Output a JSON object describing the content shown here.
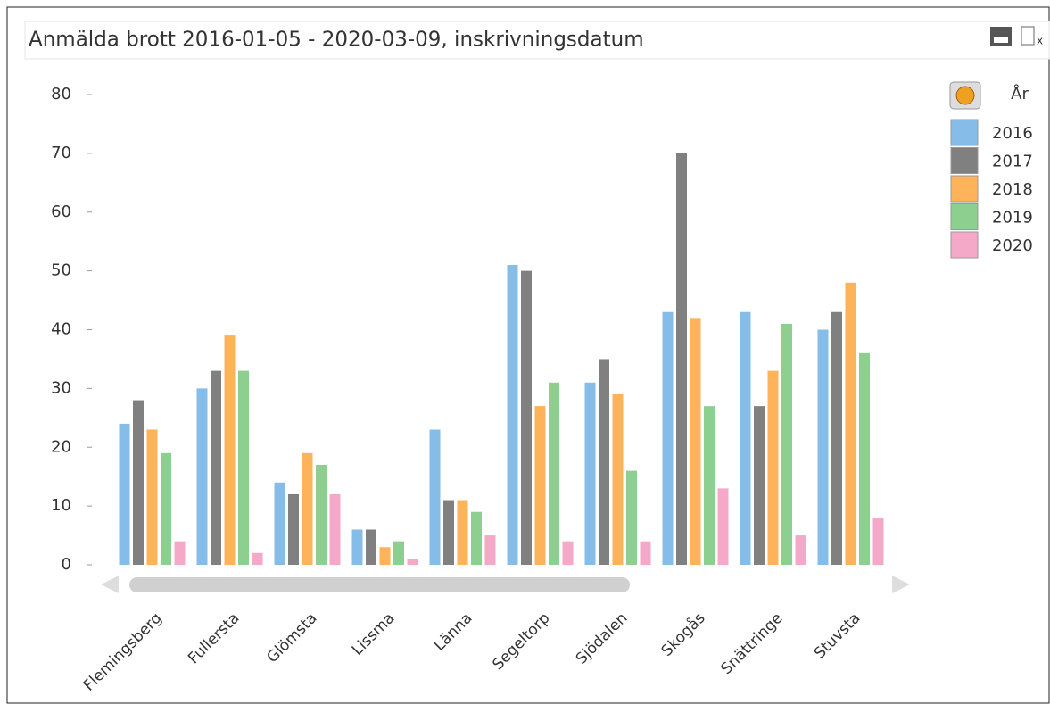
{
  "chart_data": {
    "type": "bar",
    "title": "Anmälda brott 2016-01-05 - 2020-03-09, inskrivningsdatum",
    "legend_title": "År",
    "categories": [
      "Flemingsberg",
      "Fullersta",
      "Glömsta",
      "Lissma",
      "Länna",
      "Segeltorp",
      "Sjödalen",
      "Skogås",
      "Snättringe",
      "Stuvsta"
    ],
    "series": [
      {
        "name": "2016",
        "color": "#85bde8",
        "values": [
          24,
          30,
          14,
          6,
          23,
          51,
          31,
          43,
          43,
          40
        ]
      },
      {
        "name": "2017",
        "color": "#808080",
        "values": [
          28,
          33,
          12,
          6,
          11,
          50,
          35,
          70,
          27,
          43
        ]
      },
      {
        "name": "2018",
        "color": "#fdb35a",
        "values": [
          23,
          39,
          19,
          3,
          11,
          27,
          29,
          42,
          33,
          48
        ]
      },
      {
        "name": "2019",
        "color": "#8ccf8f",
        "values": [
          19,
          33,
          17,
          4,
          9,
          31,
          16,
          27,
          41,
          36
        ]
      },
      {
        "name": "2020",
        "color": "#f5a9c8",
        "values": [
          4,
          2,
          12,
          1,
          5,
          4,
          4,
          13,
          5,
          8
        ]
      }
    ],
    "ylim": [
      0,
      80
    ],
    "yticks": [
      0,
      10,
      20,
      30,
      40,
      50,
      60,
      70,
      80
    ],
    "legend": "top-right"
  }
}
